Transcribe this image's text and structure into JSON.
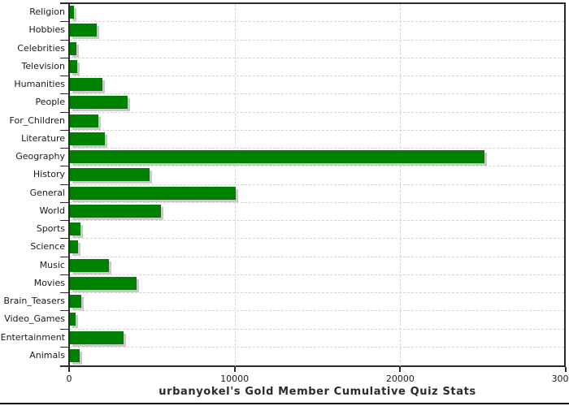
{
  "chart_data": {
    "type": "bar",
    "orientation": "horizontal",
    "title": "urbanyokel's Gold Member Cumulative Quiz Stats",
    "categories": [
      "Religion",
      "Hobbies",
      "Celebrities",
      "Television",
      "Humanities",
      "People",
      "For_Children",
      "Literature",
      "Geography",
      "History",
      "General",
      "World",
      "Sports",
      "Science",
      "Music",
      "Movies",
      "Brain_Teasers",
      "Video_Games",
      "Entertainment",
      "Animals"
    ],
    "values": [
      260,
      1600,
      410,
      440,
      1950,
      3500,
      1730,
      2100,
      25050,
      4830,
      10000,
      5500,
      650,
      490,
      2370,
      4040,
      670,
      340,
      3260,
      600
    ],
    "xlabel": "",
    "ylabel": "",
    "xlim": [
      0,
      30000
    ],
    "xticks": [
      0,
      10000,
      20000,
      30000
    ],
    "xtick_labels": [
      "0",
      "10000",
      "20000",
      "30000"
    ],
    "grid": "dashed-gray",
    "legend_position": "none",
    "colors": {
      "bar": "#008000",
      "bar_shadow": "#c9c9c9",
      "grid": "#d4d4d4",
      "axis": "#2b2b2b",
      "text": "#1a1a1a"
    }
  }
}
